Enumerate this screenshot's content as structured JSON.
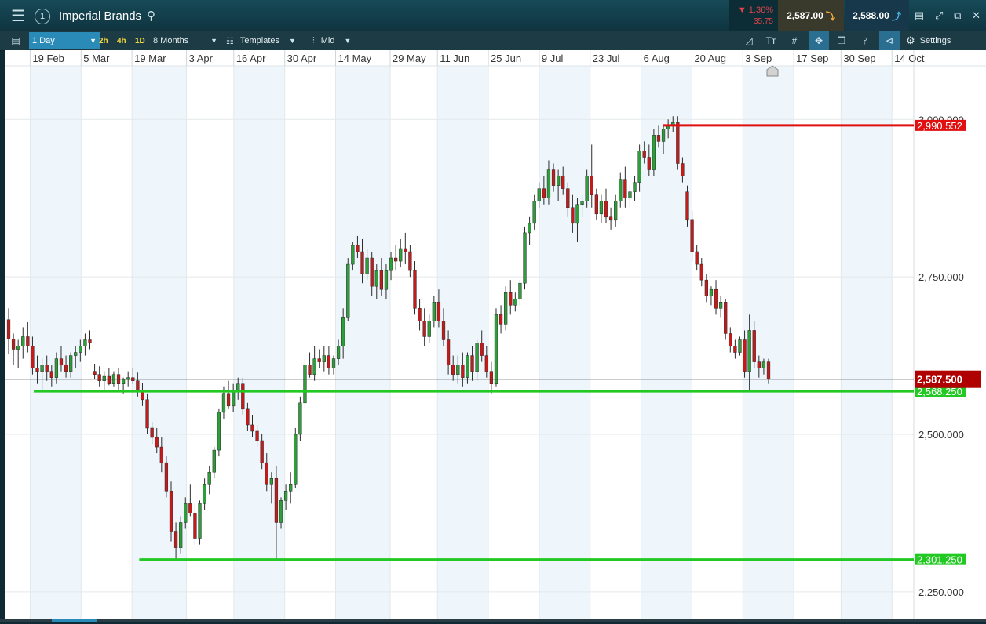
{
  "header": {
    "menu_icon": "hamburger-icon",
    "workspace_number": "1",
    "instrument": "Imperial Brands",
    "change_pct": "▼ 1.36%",
    "change_abs": "35.75",
    "sell_price": "2,587.00",
    "buy_price": "2,588.00",
    "window_icons": [
      "restore-icon",
      "expand-icon",
      "popout-icon",
      "close-icon"
    ]
  },
  "toolbar": {
    "interval": "1 Day",
    "timeframes": [
      "2h",
      "4h",
      "1D"
    ],
    "range": "8 Months",
    "templates_label": "Templates",
    "price_mode": "Mid",
    "settings_label": "Settings"
  },
  "colors": {
    "up": "#2e9e3a",
    "down": "#c51a1a",
    "support": "#22c922",
    "resistance": "#e01010",
    "band": "#eef6fc",
    "last_price": "#b00000"
  },
  "chart_data": {
    "type": "candlestick",
    "title": "",
    "xlabel": "",
    "ylabel": "",
    "x_range": [
      "2018-02-12",
      "2018-10-20"
    ],
    "ylim": [
      2205,
      3085
    ],
    "y_ticks": [
      {
        "value": 3000,
        "label": "3,000.000"
      },
      {
        "value": 2750,
        "label": "2,750.000"
      },
      {
        "value": 2500,
        "label": "2,500.000"
      },
      {
        "value": 2250,
        "label": "2,250.000"
      }
    ],
    "x_ticks": [
      {
        "date": "2018-02-19",
        "label": "19 Feb"
      },
      {
        "date": "2018-03-05",
        "label": "5 Mar"
      },
      {
        "date": "2018-03-19",
        "label": "19 Mar"
      },
      {
        "date": "2018-04-03",
        "label": "3 Apr"
      },
      {
        "date": "2018-04-16",
        "label": "16 Apr"
      },
      {
        "date": "2018-04-30",
        "label": "30 Apr"
      },
      {
        "date": "2018-05-14",
        "label": "14 May"
      },
      {
        "date": "2018-05-29",
        "label": "29 May"
      },
      {
        "date": "2018-06-11",
        "label": "11 Jun"
      },
      {
        "date": "2018-06-25",
        "label": "25 Jun"
      },
      {
        "date": "2018-07-09",
        "label": "9 Jul"
      },
      {
        "date": "2018-07-23",
        "label": "23 Jul"
      },
      {
        "date": "2018-08-06",
        "label": "6 Aug"
      },
      {
        "date": "2018-08-20",
        "label": "20 Aug"
      },
      {
        "date": "2018-09-03",
        "label": "3 Sep"
      },
      {
        "date": "2018-09-17",
        "label": "17 Sep"
      },
      {
        "date": "2018-09-30",
        "label": "30 Sep"
      },
      {
        "date": "2018-10-14",
        "label": "14 Oct"
      }
    ],
    "grid": true,
    "horizontal_lines": [
      {
        "name": "resistance",
        "value": 2990.552,
        "label": "2,990.552",
        "color": "#e01010",
        "start": "2018-08-12"
      },
      {
        "name": "support-upper",
        "value": 2568.25,
        "label": "2,568.250",
        "color": "#22c922",
        "start": "2018-02-20"
      },
      {
        "name": "support-lower",
        "value": 2301.25,
        "label": "2,301.250",
        "color": "#22c922",
        "start": "2018-03-21"
      }
    ],
    "last_price": {
      "value": 2587.5,
      "label": "2,587.500"
    },
    "candles_ohlc": [
      [
        2682,
        2700,
        2628,
        2651
      ],
      [
        2651,
        2660,
        2610,
        2635
      ],
      [
        2635,
        2650,
        2605,
        2640
      ],
      [
        2640,
        2670,
        2620,
        2655
      ],
      [
        2655,
        2678,
        2630,
        2640
      ],
      [
        2640,
        2655,
        2595,
        2605
      ],
      [
        2605,
        2625,
        2580,
        2600
      ],
      [
        2600,
        2620,
        2570,
        2610
      ],
      [
        2610,
        2625,
        2585,
        2600
      ],
      [
        2600,
        2610,
        2575,
        2590
      ],
      [
        2590,
        2630,
        2580,
        2620
      ],
      [
        2620,
        2640,
        2600,
        2610
      ],
      [
        2610,
        2625,
        2590,
        2600
      ],
      [
        2600,
        2630,
        2590,
        2625
      ],
      [
        2625,
        2640,
        2605,
        2630
      ],
      [
        2630,
        2650,
        2615,
        2640
      ],
      [
        2640,
        2660,
        2625,
        2650
      ],
      [
        2650,
        2665,
        2635,
        2645
      ],
      [
        2600,
        2612,
        2588,
        2595
      ],
      [
        2595,
        2608,
        2575,
        2585
      ],
      [
        2585,
        2600,
        2570,
        2592
      ],
      [
        2592,
        2605,
        2578,
        2580
      ],
      [
        2580,
        2600,
        2575,
        2595
      ],
      [
        2595,
        2605,
        2570,
        2580
      ],
      [
        2580,
        2590,
        2565,
        2587
      ],
      [
        2587,
        2600,
        2575,
        2590
      ],
      [
        2590,
        2605,
        2580,
        2585
      ],
      [
        2585,
        2598,
        2560,
        2570
      ],
      [
        2570,
        2582,
        2545,
        2555
      ],
      [
        2555,
        2565,
        2500,
        2510
      ],
      [
        2510,
        2520,
        2485,
        2495
      ],
      [
        2495,
        2510,
        2470,
        2480
      ],
      [
        2480,
        2495,
        2440,
        2455
      ],
      [
        2455,
        2465,
        2400,
        2410
      ],
      [
        2410,
        2425,
        2330,
        2345
      ],
      [
        2345,
        2360,
        2300,
        2320
      ],
      [
        2320,
        2370,
        2310,
        2360
      ],
      [
        2360,
        2400,
        2350,
        2390
      ],
      [
        2390,
        2420,
        2370,
        2375
      ],
      [
        2375,
        2390,
        2325,
        2335
      ],
      [
        2335,
        2395,
        2325,
        2390
      ],
      [
        2390,
        2430,
        2380,
        2420
      ],
      [
        2420,
        2450,
        2405,
        2440
      ],
      [
        2440,
        2480,
        2430,
        2475
      ],
      [
        2475,
        2540,
        2465,
        2535
      ],
      [
        2535,
        2575,
        2525,
        2565
      ],
      [
        2565,
        2585,
        2540,
        2545
      ],
      [
        2545,
        2580,
        2535,
        2570
      ],
      [
        2570,
        2590,
        2555,
        2580
      ],
      [
        2580,
        2590,
        2530,
        2540
      ],
      [
        2540,
        2550,
        2505,
        2515
      ],
      [
        2515,
        2530,
        2495,
        2505
      ],
      [
        2505,
        2515,
        2480,
        2490
      ],
      [
        2490,
        2500,
        2445,
        2455
      ],
      [
        2455,
        2470,
        2410,
        2420
      ],
      [
        2420,
        2440,
        2390,
        2430
      ],
      [
        2430,
        2450,
        2300,
        2360
      ],
      [
        2360,
        2400,
        2350,
        2395
      ],
      [
        2395,
        2420,
        2380,
        2410
      ],
      [
        2410,
        2440,
        2390,
        2420
      ],
      [
        2420,
        2510,
        2415,
        2500
      ],
      [
        2500,
        2560,
        2490,
        2550
      ],
      [
        2550,
        2620,
        2540,
        2610
      ],
      [
        2610,
        2630,
        2590,
        2595
      ],
      [
        2595,
        2640,
        2585,
        2620
      ],
      [
        2620,
        2635,
        2605,
        2615
      ],
      [
        2615,
        2640,
        2600,
        2625
      ],
      [
        2625,
        2640,
        2595,
        2605
      ],
      [
        2605,
        2625,
        2595,
        2620
      ],
      [
        2620,
        2650,
        2610,
        2640
      ],
      [
        2640,
        2700,
        2620,
        2685
      ],
      [
        2685,
        2780,
        2680,
        2770
      ],
      [
        2770,
        2805,
        2760,
        2800
      ],
      [
        2800,
        2815,
        2780,
        2790
      ],
      [
        2790,
        2810,
        2740,
        2755
      ],
      [
        2755,
        2795,
        2745,
        2780
      ],
      [
        2780,
        2790,
        2720,
        2735
      ],
      [
        2735,
        2770,
        2715,
        2760
      ],
      [
        2760,
        2780,
        2720,
        2730
      ],
      [
        2730,
        2770,
        2715,
        2760
      ],
      [
        2760,
        2790,
        2745,
        2780
      ],
      [
        2780,
        2800,
        2760,
        2775
      ],
      [
        2775,
        2810,
        2765,
        2795
      ],
      [
        2795,
        2820,
        2770,
        2790
      ],
      [
        2790,
        2800,
        2750,
        2760
      ],
      [
        2760,
        2775,
        2690,
        2700
      ],
      [
        2700,
        2715,
        2665,
        2680
      ],
      [
        2680,
        2700,
        2640,
        2655
      ],
      [
        2655,
        2690,
        2645,
        2680
      ],
      [
        2680,
        2720,
        2670,
        2710
      ],
      [
        2710,
        2730,
        2670,
        2680
      ],
      [
        2680,
        2700,
        2640,
        2650
      ],
      [
        2650,
        2665,
        2595,
        2610
      ],
      [
        2610,
        2625,
        2585,
        2595
      ],
      [
        2595,
        2625,
        2580,
        2610
      ],
      [
        2610,
        2630,
        2575,
        2590
      ],
      [
        2590,
        2630,
        2580,
        2625
      ],
      [
        2625,
        2640,
        2585,
        2600
      ],
      [
        2600,
        2650,
        2585,
        2645
      ],
      [
        2645,
        2665,
        2615,
        2625
      ],
      [
        2625,
        2640,
        2590,
        2600
      ],
      [
        2600,
        2615,
        2565,
        2580
      ],
      [
        2580,
        2700,
        2575,
        2690
      ],
      [
        2690,
        2705,
        2660,
        2675
      ],
      [
        2675,
        2735,
        2665,
        2725
      ],
      [
        2725,
        2745,
        2690,
        2705
      ],
      [
        2705,
        2725,
        2695,
        2715
      ],
      [
        2715,
        2745,
        2705,
        2740
      ],
      [
        2740,
        2830,
        2730,
        2820
      ],
      [
        2820,
        2845,
        2800,
        2835
      ],
      [
        2835,
        2880,
        2825,
        2870
      ],
      [
        2870,
        2900,
        2860,
        2890
      ],
      [
        2890,
        2910,
        2865,
        2875
      ],
      [
        2875,
        2935,
        2865,
        2920
      ],
      [
        2920,
        2930,
        2885,
        2895
      ],
      [
        2895,
        2920,
        2870,
        2910
      ],
      [
        2910,
        2925,
        2880,
        2890
      ],
      [
        2890,
        2900,
        2845,
        2860
      ],
      [
        2860,
        2880,
        2820,
        2835
      ],
      [
        2835,
        2875,
        2805,
        2865
      ],
      [
        2865,
        2880,
        2845,
        2870
      ],
      [
        2870,
        2920,
        2860,
        2910
      ],
      [
        2910,
        2960,
        2860,
        2880
      ],
      [
        2880,
        2890,
        2840,
        2850
      ],
      [
        2850,
        2880,
        2835,
        2870
      ],
      [
        2870,
        2890,
        2835,
        2845
      ],
      [
        2845,
        2860,
        2825,
        2840
      ],
      [
        2840,
        2880,
        2830,
        2870
      ],
      [
        2870,
        2915,
        2860,
        2905
      ],
      [
        2905,
        2925,
        2860,
        2875
      ],
      [
        2875,
        2895,
        2860,
        2885
      ],
      [
        2885,
        2910,
        2870,
        2900
      ],
      [
        2900,
        2960,
        2885,
        2950
      ],
      [
        2950,
        2965,
        2930,
        2940
      ],
      [
        2940,
        2960,
        2910,
        2920
      ],
      [
        2920,
        2985,
        2910,
        2975
      ],
      [
        2975,
        2990,
        2955,
        2965
      ],
      [
        2965,
        2990,
        2945,
        2985
      ],
      [
        2985,
        3000,
        2970,
        2990
      ],
      [
        2990,
        3005,
        2980,
        2995
      ],
      [
        2995,
        3005,
        2920,
        2930
      ],
      [
        2930,
        2940,
        2900,
        2910
      ],
      [
        2885,
        2895,
        2830,
        2840
      ],
      [
        2840,
        2855,
        2775,
        2790
      ],
      [
        2790,
        2800,
        2760,
        2770
      ],
      [
        2770,
        2780,
        2735,
        2745
      ],
      [
        2745,
        2755,
        2710,
        2720
      ],
      [
        2720,
        2735,
        2705,
        2730
      ],
      [
        2730,
        2745,
        2690,
        2700
      ],
      [
        2700,
        2720,
        2685,
        2710
      ],
      [
        2710,
        2715,
        2650,
        2660
      ],
      [
        2660,
        2670,
        2630,
        2640
      ],
      [
        2640,
        2650,
        2620,
        2630
      ],
      [
        2630,
        2655,
        2625,
        2650
      ],
      [
        2650,
        2665,
        2590,
        2600
      ],
      [
        2600,
        2690,
        2570,
        2665
      ],
      [
        2665,
        2680,
        2605,
        2615
      ],
      [
        2615,
        2625,
        2590,
        2605
      ],
      [
        2605,
        2620,
        2595,
        2615
      ],
      [
        2615,
        2620,
        2580,
        2587.5
      ]
    ]
  }
}
